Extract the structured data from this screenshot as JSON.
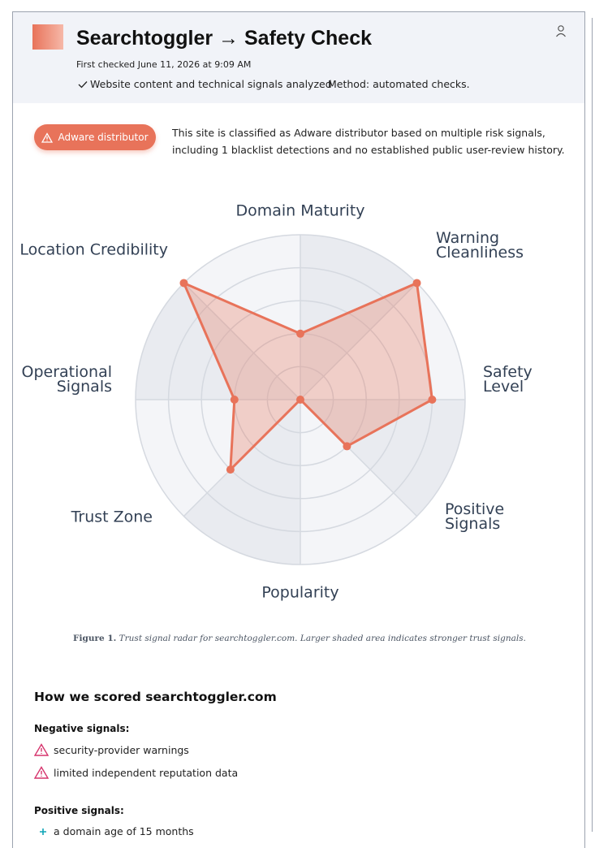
{
  "header": {
    "title": "Searchtoggler → Safety Check",
    "first_checked": "First checked June 11, 2026 at 9:09 AM",
    "analyzed": "Website content and technical signals analyzed",
    "method": "Method: automated checks."
  },
  "verdict": {
    "badge": "Adware distributor",
    "description": "This site is classified as Adware distributor based on multiple risk signals, including 1 blacklist detections and no established public user-review history."
  },
  "chart_data": {
    "type": "radar",
    "categories": [
      "Domain Maturity",
      "Warning Cleanliness",
      "Safety Level",
      "Positive Signals",
      "Popularity",
      "Trust Zone",
      "Operational Signals",
      "Location Credibility"
    ],
    "values": [
      40,
      100,
      80,
      40,
      0,
      60,
      40,
      100
    ],
    "color": "#e8735a",
    "ylim": [
      0,
      100
    ],
    "yticks": [
      20,
      40,
      60,
      80,
      100
    ],
    "grid": true
  },
  "figure": {
    "label": "Figure 1.",
    "caption": "Trust signal radar for searchtoggler.com. Larger shaded area indicates stronger trust signals."
  },
  "scoring": {
    "heading": "How we scored searchtoggler.com",
    "negative": {
      "heading": "Negative signals:",
      "items": [
        "security-provider warnings",
        "limited independent reputation data"
      ]
    },
    "positive": {
      "heading": "Positive signals:",
      "items": [
        "a domain age of 15 months"
      ]
    }
  }
}
